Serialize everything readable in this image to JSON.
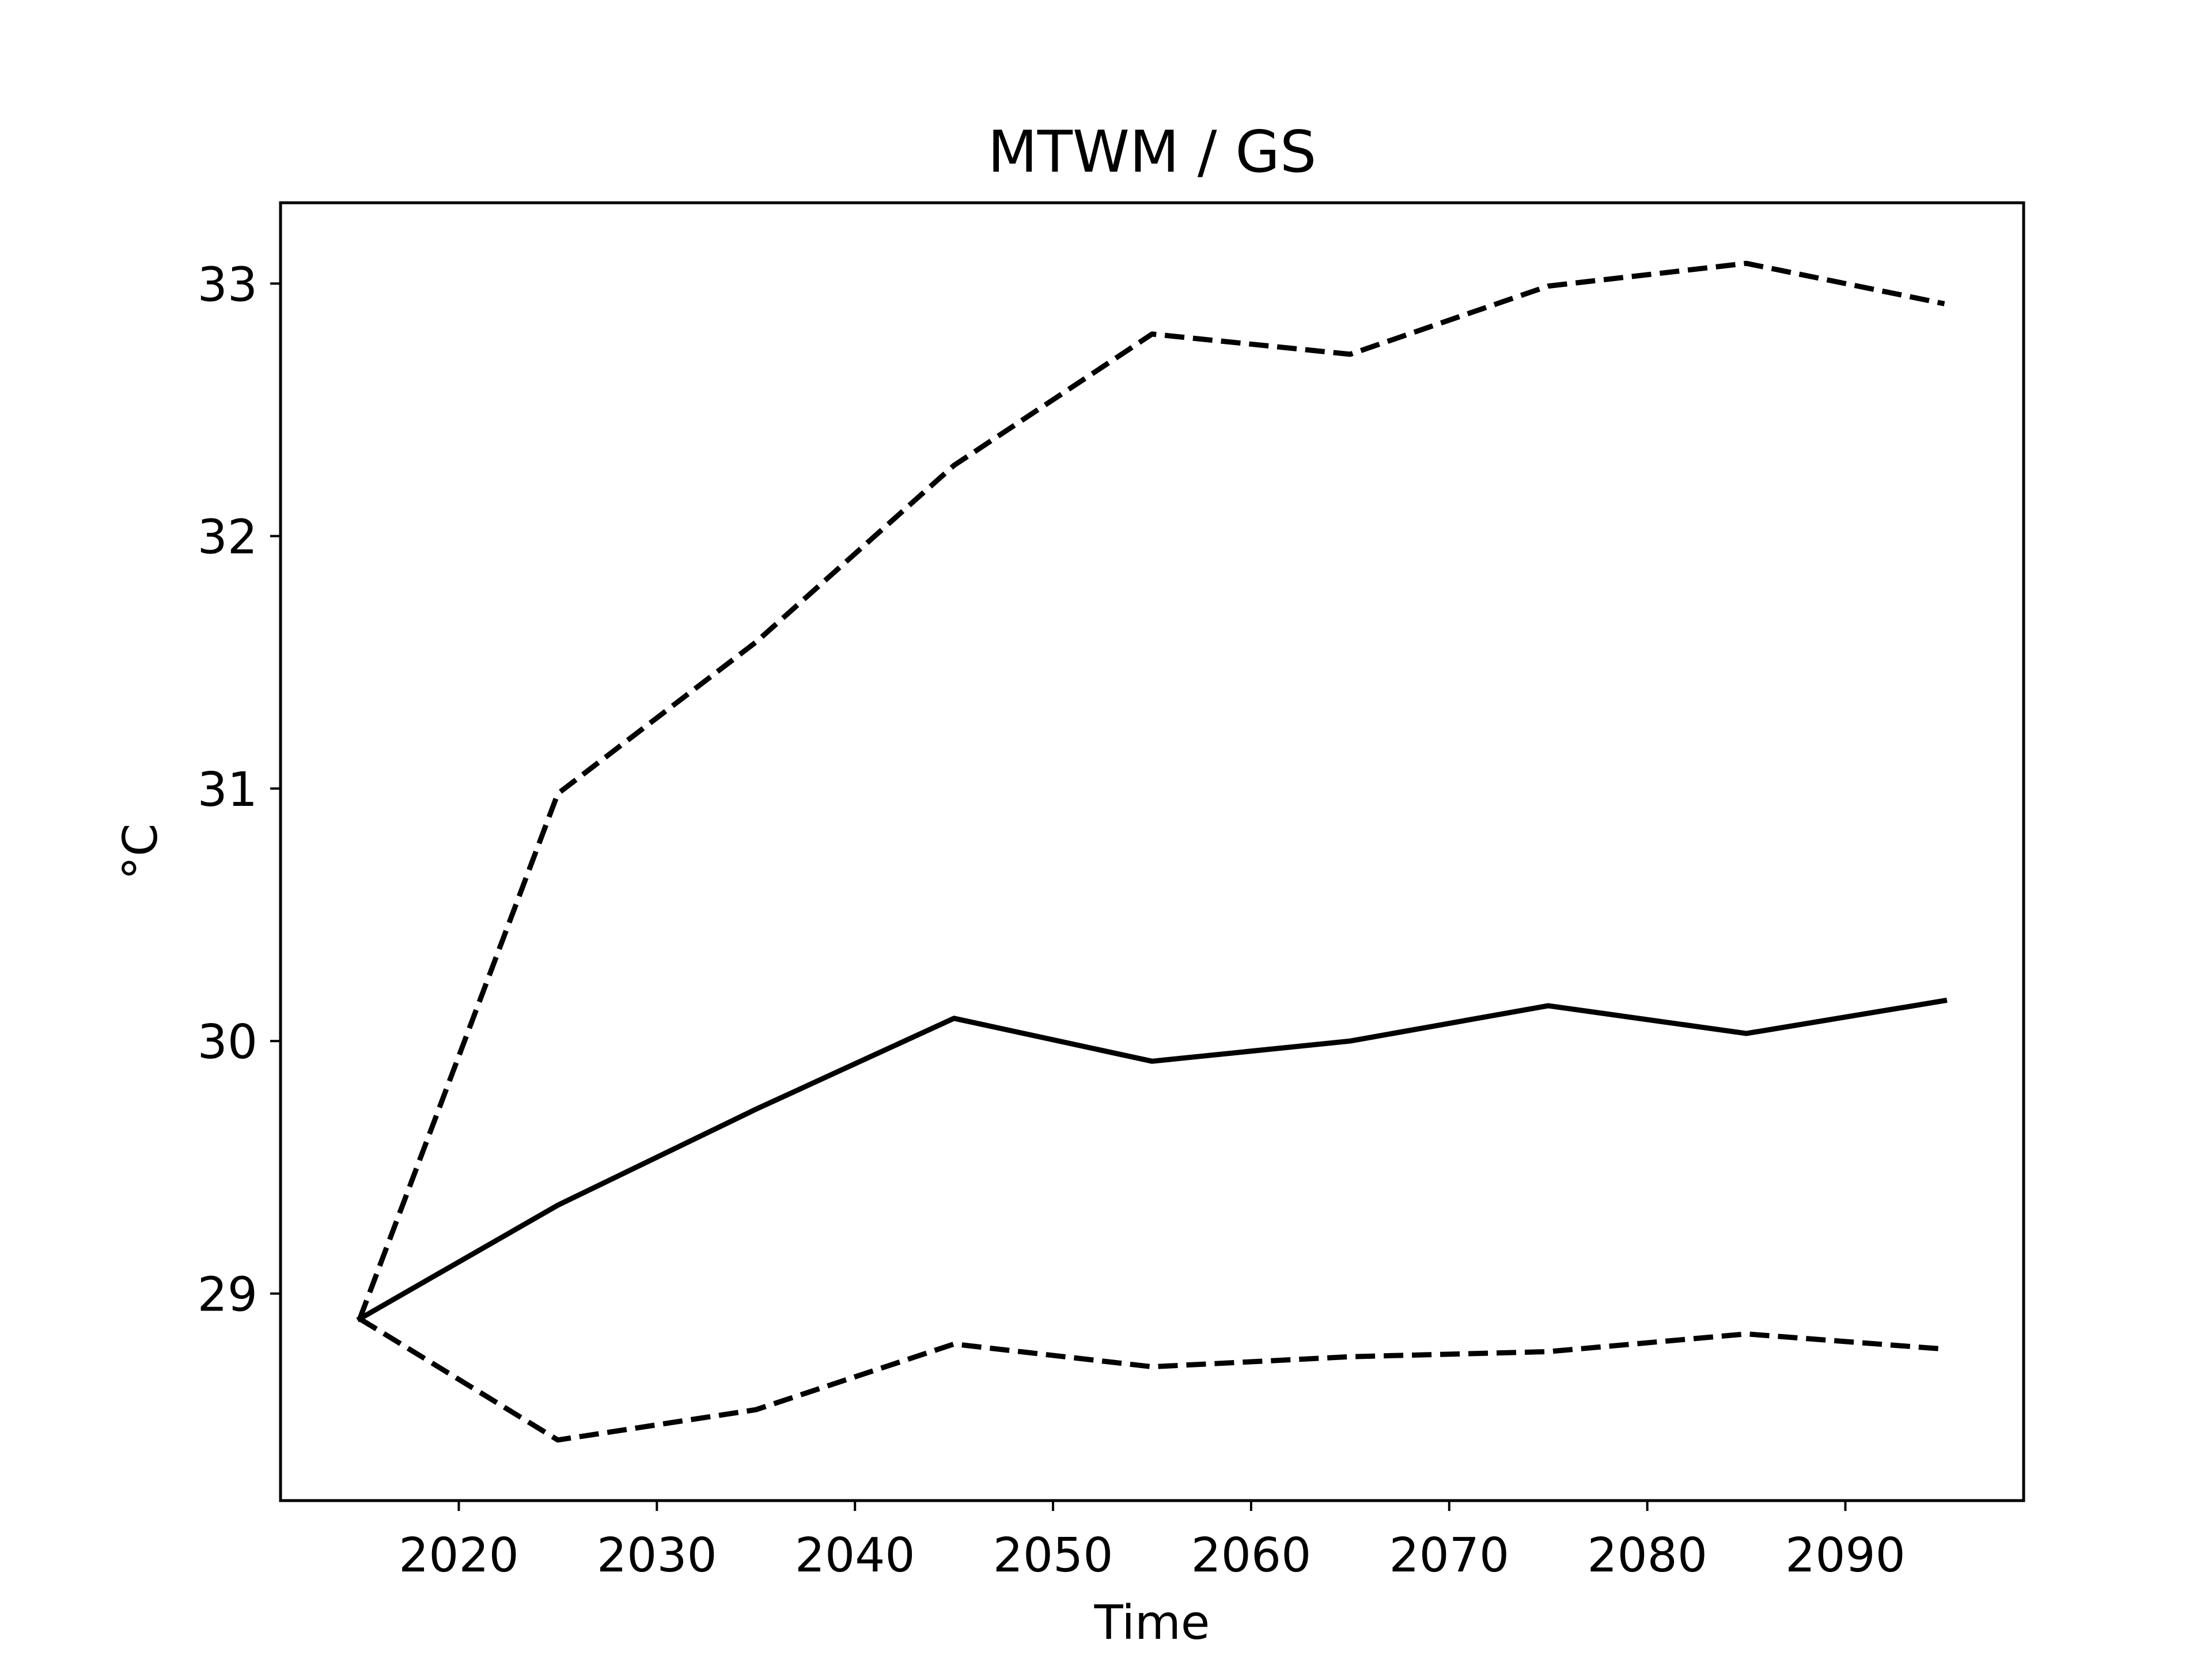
{
  "chart_data": {
    "type": "line",
    "title": "MTWM / GS",
    "xlabel": "Time",
    "ylabel": "°C",
    "x": [
      2015,
      2025,
      2035,
      2045,
      2055,
      2065,
      2075,
      2085,
      2095
    ],
    "xlim": [
      2011,
      2099
    ],
    "ylim": [
      28.18,
      33.32
    ],
    "xticks": [
      2020,
      2030,
      2040,
      2050,
      2060,
      2070,
      2080,
      2090
    ],
    "yticks": [
      29,
      30,
      31,
      32,
      33
    ],
    "grid": false,
    "series": [
      {
        "style": "solid",
        "color": "#000000",
        "values": [
          28.9,
          29.35,
          29.73,
          30.09,
          29.92,
          30.0,
          30.14,
          30.03,
          30.16
        ]
      },
      {
        "style": "dashed",
        "color": "#000000",
        "values": [
          28.9,
          30.98,
          31.58,
          32.28,
          32.8,
          32.72,
          32.99,
          33.08,
          32.92
        ]
      },
      {
        "style": "dashed",
        "color": "#000000",
        "values": [
          28.9,
          28.42,
          28.54,
          28.8,
          28.71,
          28.75,
          28.77,
          28.84,
          28.78
        ]
      }
    ]
  }
}
